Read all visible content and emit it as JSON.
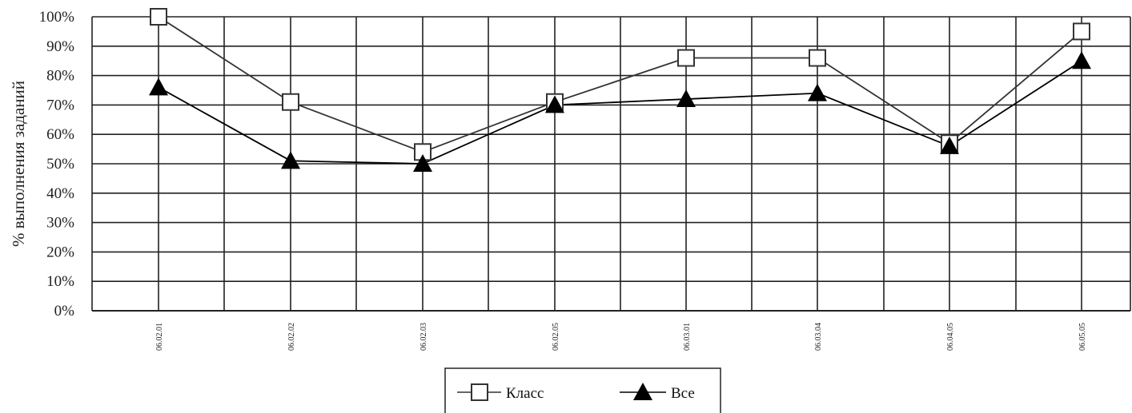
{
  "chart_data": {
    "type": "line",
    "title": "",
    "xlabel": "",
    "ylabel": "% выполнения заданий",
    "categories": [
      "06.02.01",
      "06.02.02",
      "06.02.03",
      "06.02.05",
      "06.03.01",
      "06.03.04",
      "06.04.05",
      "06.05.05"
    ],
    "ylim": [
      0,
      100
    ],
    "y_ticks": [
      "0%",
      "10%",
      "20%",
      "30%",
      "40%",
      "50%",
      "60%",
      "70%",
      "80%",
      "90%",
      "100%"
    ],
    "grid": true,
    "legend_position": "bottom-center",
    "series": [
      {
        "name": "Класс",
        "marker": "square-open",
        "color": "#333333",
        "values": [
          100,
          71,
          54,
          71,
          86,
          86,
          57,
          95
        ]
      },
      {
        "name": "Все",
        "marker": "triangle-filled",
        "color": "#000000",
        "values": [
          76,
          51,
          50,
          70,
          72,
          74,
          56,
          85
        ]
      }
    ]
  }
}
